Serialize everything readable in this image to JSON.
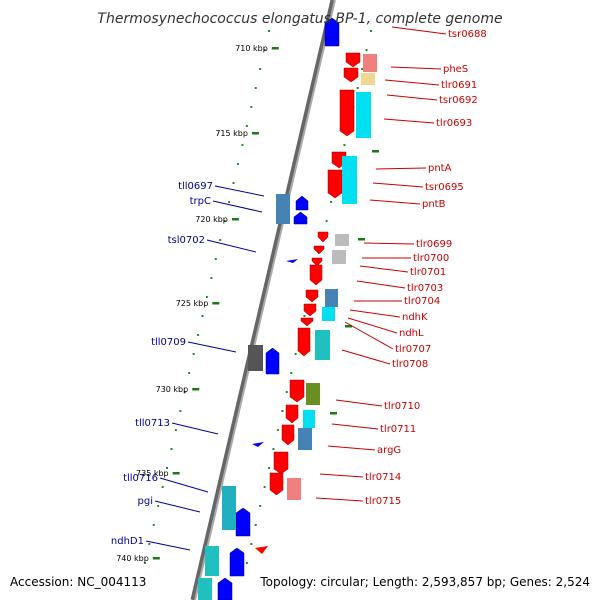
{
  "title": "Thermosynechococcus elongatus BP-1, complete genome",
  "footer": {
    "accession": "Accession: NC_004113",
    "summary": "Topology: circular; Length: 2,593,857 bp; Genes: 2,524"
  },
  "colors": {
    "forward_label": "#cc0000",
    "reverse_label": "#000099",
    "backbone": "#888888",
    "ticks": "#1a7a1a",
    "forward_gene": "#ff0000",
    "reverse_gene": "#0000ff"
  },
  "ticks": [
    {
      "label": "710 kbp"
    },
    {
      "label": "715 kbp"
    },
    {
      "label": "720 kbp"
    },
    {
      "label": "725 kbp"
    },
    {
      "label": "730 kbp"
    },
    {
      "label": "735 kbp"
    },
    {
      "label": "740 kbp"
    }
  ],
  "forward_labels": [
    {
      "text": "tsr0688"
    },
    {
      "text": "pheS"
    },
    {
      "text": "tlr0691"
    },
    {
      "text": "tsr0692"
    },
    {
      "text": "tlr0693"
    },
    {
      "text": "pntA"
    },
    {
      "text": "tsr0695"
    },
    {
      "text": "pntB"
    },
    {
      "text": "tlr0699"
    },
    {
      "text": "tlr0700"
    },
    {
      "text": "tlr0701"
    },
    {
      "text": "tlr0703"
    },
    {
      "text": "tlr0704"
    },
    {
      "text": "ndhK"
    },
    {
      "text": "ndhL"
    },
    {
      "text": "tlr0707"
    },
    {
      "text": "tlr0708"
    },
    {
      "text": "tlr0710"
    },
    {
      "text": "tlr0711"
    },
    {
      "text": "argG"
    },
    {
      "text": "tlr0714"
    },
    {
      "text": "tlr0715"
    }
  ],
  "reverse_labels": [
    {
      "text": "tll0697"
    },
    {
      "text": "trpC"
    },
    {
      "text": "tsl0702"
    },
    {
      "text": "tll0709"
    },
    {
      "text": "tll0713"
    },
    {
      "text": "tll0716"
    },
    {
      "text": "pgi"
    },
    {
      "text": "ndhD1"
    }
  ]
}
